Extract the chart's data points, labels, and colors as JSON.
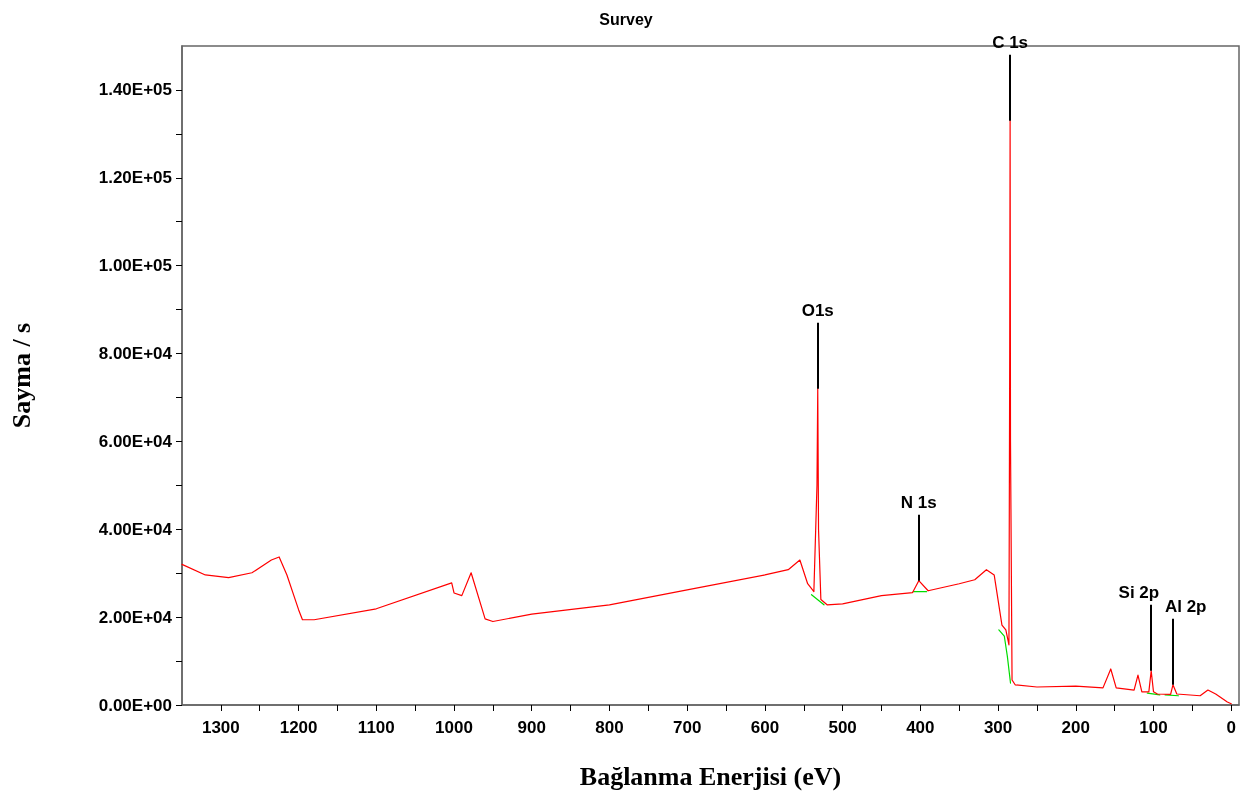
{
  "chart_data": {
    "type": "line",
    "title": "Survey",
    "xlabel": "Bağlanma Enerjisi (eV)",
    "ylabel": "Sayma / s",
    "xlim": [
      1350,
      -10
    ],
    "ylim": [
      0,
      150000
    ],
    "xticks": [
      1300,
      {
        "value": 1250,
        "label": null
      },
      1200,
      {
        "value": 1150,
        "label": null
      },
      1100,
      {
        "value": 1050,
        "label": null
      },
      1000,
      {
        "value": 950,
        "label": null
      },
      900,
      {
        "value": 850,
        "label": null
      },
      800,
      {
        "value": 750,
        "label": null
      },
      700,
      {
        "value": 650,
        "label": null
      },
      600,
      {
        "value": 550,
        "label": null
      },
      500,
      {
        "value": 450,
        "label": null
      },
      400,
      {
        "value": 350,
        "label": null
      },
      300,
      {
        "value": 250,
        "label": null
      },
      200,
      {
        "value": 150,
        "label": null
      },
      100,
      {
        "value": 50,
        "label": null
      },
      0
    ],
    "yticks": [
      {
        "value": 0,
        "label": "0.00E+00"
      },
      {
        "value": 10000,
        "label": null
      },
      {
        "value": 20000,
        "label": "2.00E+04"
      },
      {
        "value": 30000,
        "label": null
      },
      {
        "value": 40000,
        "label": "4.00E+04"
      },
      {
        "value": 50000,
        "label": null
      },
      {
        "value": 60000,
        "label": "6.00E+04"
      },
      {
        "value": 70000,
        "label": null
      },
      {
        "value": 80000,
        "label": "8.00E+04"
      },
      {
        "value": 90000,
        "label": null
      },
      {
        "value": 100000,
        "label": "1.00E+05"
      },
      {
        "value": 110000,
        "label": null
      },
      {
        "value": 120000,
        "label": "1.20E+05"
      },
      {
        "value": 130000,
        "label": null
      },
      {
        "value": 140000,
        "label": "1.40E+05"
      }
    ],
    "grid": false,
    "marker": "none",
    "line_style": "solid",
    "series": [
      {
        "color": "#ff0000",
        "x": [
          1350,
          1320,
          1290,
          1260,
          1235,
          1225,
          1215,
          1200,
          1195,
          1180,
          1100,
          1003,
          1000,
          990,
          978,
          960,
          950,
          900,
          800,
          700,
          600,
          570,
          555,
          545,
          537,
          533,
          532,
          531,
          528,
          520,
          500,
          450,
          410,
          402,
          390,
          350,
          330,
          315,
          305,
          295,
          290,
          286,
          285,
          284.5,
          284,
          282,
          278,
          250,
          200,
          165,
          155,
          148,
          125,
          120,
          115,
          106,
          103,
          100,
          95,
          78,
          75,
          70,
          40,
          30,
          20,
          5,
          0
        ],
        "values": [
          32000,
          29600,
          29000,
          30100,
          33000,
          33700,
          29600,
          21700,
          19400,
          19400,
          21900,
          27800,
          25500,
          24900,
          30100,
          19600,
          19000,
          20700,
          22800,
          26200,
          29600,
          30800,
          33000,
          27600,
          25800,
          50000,
          72000,
          40000,
          24000,
          22800,
          23000,
          24900,
          25600,
          28300,
          26000,
          27600,
          28500,
          30800,
          29600,
          18200,
          17100,
          13700,
          80000,
          133000,
          60000,
          5700,
          4600,
          4100,
          4300,
          3900,
          8200,
          3900,
          3400,
          6800,
          3000,
          3000,
          7800,
          3000,
          2500,
          2400,
          4600,
          2500,
          2100,
          3400,
          2500,
          700,
          300
        ]
      },
      {
        "color": "#00dd00",
        "x": [
          540,
          524,
          523,
          409,
          392,
          391,
          299,
          292,
          288,
          284,
          283,
          108,
          92,
          91,
          85,
          68
        ],
        "values": [
          25100,
          22800,
          null,
          25800,
          25800,
          null,
          17100,
          15700,
          11000,
          5000,
          null,
          2700,
          2300,
          null,
          2300,
          2100
        ]
      }
    ],
    "annotations": [
      {
        "text": "O1s",
        "x": 532,
        "y": 72000
      },
      {
        "text": "N 1s",
        "x": 402,
        "y": 28300
      },
      {
        "text": "C 1s",
        "x": 284.5,
        "y": 133000
      },
      {
        "text": "Si 2p",
        "x": 103,
        "y": 7800
      },
      {
        "text": "Al 2p",
        "x": 75,
        "y": 4600
      }
    ]
  }
}
